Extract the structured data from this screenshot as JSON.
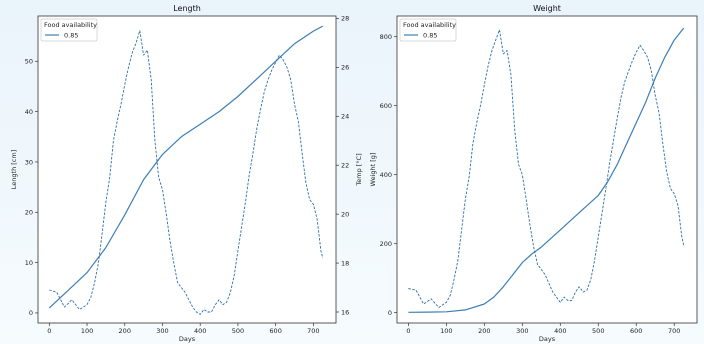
{
  "figure": {
    "style": {
      "line_color": "#3d7eb5",
      "dashed_color": "#2b6ea8",
      "background": "#ffffff",
      "axis_color": "#333333"
    }
  },
  "chart_data": [
    {
      "type": "line",
      "title": "Length",
      "xlabel": "Days",
      "ylabel": "Length [cm]",
      "ylabel_right": "Temp [°C]",
      "xlim": [
        -30,
        760
      ],
      "ylim": [
        -2,
        59
      ],
      "ylim_right": [
        15.55,
        28.1
      ],
      "xticks": [
        0,
        100,
        200,
        300,
        400,
        500,
        600,
        700
      ],
      "yticks": [
        0,
        10,
        20,
        30,
        40,
        50
      ],
      "yticks_right": [
        16,
        18,
        20,
        22,
        24,
        26,
        28
      ],
      "grid": false,
      "legend": {
        "title": "Food availability",
        "entries": [
          "0.85"
        ],
        "position": "top-left"
      },
      "series": [
        {
          "name": "0.85",
          "axis": "left",
          "style": "solid",
          "x": [
            0,
            50,
            100,
            150,
            200,
            250,
            300,
            350,
            400,
            450,
            500,
            550,
            600,
            650,
            700,
            725
          ],
          "y": [
            1.0,
            4.5,
            8.0,
            13.0,
            19.5,
            26.5,
            31.5,
            35.0,
            37.5,
            40.0,
            43.0,
            46.5,
            50.0,
            53.5,
            56.0,
            57.0
          ]
        },
        {
          "axis": "right",
          "style": "dashed",
          "x": [
            0,
            20,
            40,
            60,
            80,
            100,
            110,
            120,
            130,
            140,
            150,
            160,
            170,
            180,
            190,
            200,
            210,
            220,
            230,
            240,
            250,
            260,
            270,
            280,
            290,
            300,
            310,
            320,
            330,
            340,
            350,
            360,
            370,
            380,
            390,
            400,
            410,
            420,
            430,
            440,
            450,
            460,
            470,
            480,
            490,
            500,
            510,
            520,
            530,
            540,
            550,
            560,
            570,
            580,
            590,
            600,
            610,
            620,
            630,
            640,
            650,
            660,
            670,
            680,
            690,
            700,
            710,
            720,
            725
          ],
          "y": [
            16.9,
            16.8,
            16.2,
            16.5,
            16.1,
            16.3,
            16.6,
            17.2,
            18.0,
            19.2,
            20.5,
            21.5,
            23.0,
            23.8,
            24.5,
            25.3,
            26.0,
            26.6,
            27.0,
            27.5,
            26.5,
            26.7,
            25.5,
            23.0,
            21.5,
            21.0,
            20.0,
            18.9,
            18.0,
            17.2,
            17.0,
            16.8,
            16.5,
            16.2,
            16.0,
            15.9,
            16.1,
            16.0,
            16.0,
            16.3,
            16.5,
            16.3,
            16.4,
            16.8,
            17.5,
            18.5,
            19.5,
            20.5,
            21.6,
            22.5,
            23.5,
            24.3,
            25.0,
            25.5,
            25.9,
            26.2,
            26.5,
            26.3,
            26.0,
            25.5,
            24.5,
            23.8,
            22.5,
            21.3,
            20.6,
            20.4,
            19.8,
            18.5,
            18.2
          ]
        }
      ]
    },
    {
      "type": "line",
      "title": "Weight",
      "xlabel": "Days",
      "ylabel": "Weight [g]",
      "xlim": [
        -30,
        760
      ],
      "ylim": [
        -30,
        860
      ],
      "xticks": [
        0,
        100,
        200,
        300,
        400,
        500,
        600,
        700
      ],
      "yticks": [
        0,
        200,
        400,
        600,
        800
      ],
      "grid": false,
      "legend": {
        "title": "Food availability",
        "entries": [
          "0.85"
        ],
        "position": "top-left"
      },
      "series": [
        {
          "name": "0.85",
          "style": "solid",
          "x": [
            0,
            50,
            100,
            150,
            200,
            225,
            250,
            275,
            300,
            325,
            350,
            400,
            450,
            500,
            525,
            550,
            575,
            600,
            625,
            650,
            675,
            700,
            725
          ],
          "y": [
            1,
            1.5,
            2.5,
            8,
            25,
            45,
            75,
            110,
            145,
            170,
            190,
            240,
            290,
            340,
            380,
            430,
            490,
            550,
            610,
            680,
            740,
            790,
            825
          ]
        },
        {
          "style": "dashed",
          "x": [
            0,
            20,
            40,
            60,
            80,
            100,
            110,
            120,
            130,
            140,
            150,
            160,
            170,
            180,
            190,
            200,
            210,
            220,
            230,
            240,
            250,
            260,
            270,
            280,
            290,
            300,
            310,
            320,
            330,
            340,
            350,
            360,
            370,
            380,
            390,
            400,
            410,
            420,
            430,
            440,
            450,
            460,
            470,
            480,
            490,
            500,
            510,
            520,
            530,
            540,
            550,
            560,
            570,
            580,
            590,
            600,
            610,
            620,
            630,
            640,
            650,
            660,
            670,
            680,
            690,
            700,
            710,
            720,
            725
          ],
          "y": [
            70,
            65,
            25,
            40,
            15,
            30,
            50,
            95,
            150,
            240,
            330,
            395,
            490,
            550,
            600,
            660,
            715,
            760,
            790,
            820,
            750,
            760,
            690,
            530,
            430,
            400,
            330,
            255,
            190,
            140,
            125,
            110,
            85,
            60,
            45,
            30,
            45,
            35,
            35,
            60,
            75,
            60,
            65,
            95,
            150,
            220,
            290,
            360,
            435,
            500,
            565,
            625,
            670,
            700,
            730,
            755,
            775,
            760,
            740,
            700,
            630,
            580,
            490,
            410,
            360,
            345,
            310,
            220,
            195
          ]
        }
      ]
    }
  ]
}
